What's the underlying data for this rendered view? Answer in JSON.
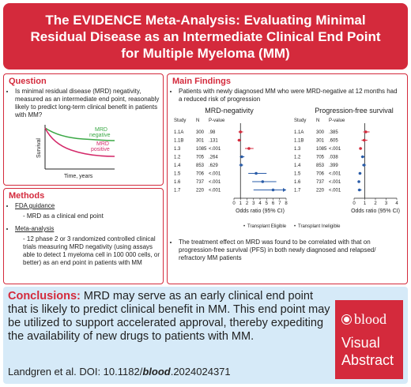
{
  "title": {
    "line1": "The EVIDENCE Meta-Analysis: Evaluating Minimal",
    "line2": "Residual Disease as an Intermediate Clinical End Point",
    "line3": "for Multiple Myeloma (MM)"
  },
  "question": {
    "heading": "Question",
    "text": "Is minimal residual disease (MRD) negativity, measured as an intermediate end point, reasonably likely to predict long-term clinical benefit in patients with MM?",
    "curve_label_negative": "MRD negative",
    "curve_label_positive": "MRD positive",
    "y_label": "Survival",
    "x_label": "Time, years",
    "neg_color": "#3aa845",
    "pos_color": "#d42a6a"
  },
  "methods": {
    "heading": "Methods",
    "fda_label": "FDA guidance",
    "fda_detail": "- MRD as a clinical end point",
    "meta_label": "Meta-analysis",
    "meta_detail": "- 12 phase 2 or 3 randomized controlled clinical trials measuring MRD negativity (using assays able to detect 1 myeloma cell in 100 000 cells, or better) as an end point in patients with MM"
  },
  "findings": {
    "heading": "Main Findings",
    "bullet1": "Patients with newly diagnosed MM who were MRD-negative at 12 months had a reduced risk of progression",
    "bullet2": "The treatment effect on MRD was found to be correlated with that on progression-free survival (PFS) in both newly diagnosed and relapsed/ refractory MM patients",
    "legend_eligible": "Transplant Eligible",
    "legend_ineligible": "Transplant Ineligible",
    "eligible_color": "#d42a3c",
    "ineligible_color": "#2a5ca8"
  },
  "chart_data": [
    {
      "type": "forest",
      "title": "MRD-negativity",
      "xlabel": "Odds ratio (95% CI)",
      "xlim": [
        0,
        8
      ],
      "xticks": [
        "0",
        "1",
        "2",
        "3",
        "4",
        "5",
        "6",
        "7",
        "8"
      ],
      "col_headers": [
        "Study",
        "N",
        "P-value"
      ],
      "rows": [
        {
          "study": "1.1A",
          "n": "300",
          "p": ".98",
          "est": 1.0,
          "lo": 0.7,
          "hi": 1.4,
          "group": "eligible"
        },
        {
          "study": "1.1B",
          "n": "301",
          "p": ".131",
          "est": 0.8,
          "lo": 0.55,
          "hi": 1.1,
          "group": "eligible"
        },
        {
          "study": "1.3",
          "n": "1085",
          "p": "<.001",
          "est": 2.3,
          "lo": 1.7,
          "hi": 3.0,
          "group": "eligible"
        },
        {
          "study": "1.2",
          "n": "705",
          "p": ".264",
          "est": 1.2,
          "lo": 0.9,
          "hi": 1.6,
          "group": "ineligible"
        },
        {
          "study": "1.4",
          "n": "853",
          "p": ".629",
          "est": 1.1,
          "lo": 0.8,
          "hi": 1.4,
          "group": "ineligible"
        },
        {
          "study": "1.5",
          "n": "706",
          "p": "<.001",
          "est": 3.4,
          "lo": 2.2,
          "hi": 5.0,
          "group": "ineligible"
        },
        {
          "study": "1.6",
          "n": "737",
          "p": "<.001",
          "est": 4.4,
          "lo": 2.8,
          "hi": 6.5,
          "group": "ineligible"
        },
        {
          "study": "1.7",
          "n": "220",
          "p": "<.001",
          "est": 6.0,
          "lo": 3.0,
          "hi": 8.0,
          "group": "ineligible"
        }
      ]
    },
    {
      "type": "forest",
      "title": "Progression-free survival",
      "xlabel": "Odds ratio (95% CI)",
      "xlim": [
        0,
        4
      ],
      "xticks": [
        "0",
        "1",
        "2",
        "3",
        "4"
      ],
      "col_headers": [
        "Study",
        "N",
        "P-value"
      ],
      "rows": [
        {
          "study": "1.1A",
          "n": "300",
          "p": ".385",
          "est": 1.1,
          "lo": 0.85,
          "hi": 1.45,
          "group": "eligible"
        },
        {
          "study": "1.1B",
          "n": "301",
          "p": ".605",
          "est": 0.95,
          "lo": 0.7,
          "hi": 1.25,
          "group": "eligible"
        },
        {
          "study": "1.3",
          "n": "1085",
          "p": "<.001",
          "est": 0.6,
          "lo": 0.5,
          "hi": 0.75,
          "group": "eligible"
        },
        {
          "study": "1.2",
          "n": "705",
          "p": ".038",
          "est": 0.8,
          "lo": 0.65,
          "hi": 0.98,
          "group": "ineligible"
        },
        {
          "study": "1.4",
          "n": "853",
          "p": ".399",
          "est": 0.92,
          "lo": 0.75,
          "hi": 1.12,
          "group": "ineligible"
        },
        {
          "study": "1.5",
          "n": "706",
          "p": "<.001",
          "est": 0.55,
          "lo": 0.45,
          "hi": 0.68,
          "group": "ineligible"
        },
        {
          "study": "1.6",
          "n": "737",
          "p": "<.001",
          "est": 0.45,
          "lo": 0.36,
          "hi": 0.56,
          "group": "ineligible"
        },
        {
          "study": "1.7",
          "n": "220",
          "p": "<.001",
          "est": 0.5,
          "lo": 0.35,
          "hi": 0.7,
          "group": "ineligible"
        }
      ]
    }
  ],
  "conclusions": {
    "label": "Conclusions:",
    "text": "MRD may serve as an early clinical end point that is likely to predict clinical benefit in MM. This end point may be utilized to support accelerated approval, thereby expediting the  availability of new drugs to patients with MM.",
    "citation_prefix": "Landgren et al. DOI: 10.1182/",
    "citation_bold": "blood",
    "citation_suffix": ".2024024371"
  },
  "logo": {
    "brand": "blood",
    "line1": "Visual",
    "line2": "Abstract"
  }
}
